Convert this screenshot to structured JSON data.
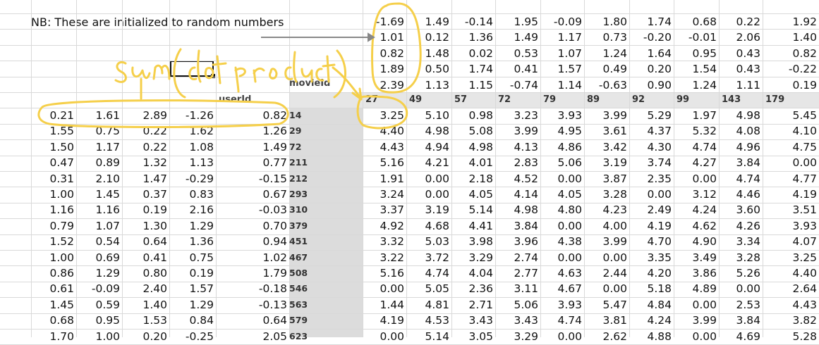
{
  "note": "NB: These are initialized to random numbers",
  "annotation_text": "sum(dot product)",
  "headers": {
    "userId": "userId",
    "movieId": "movieId"
  },
  "movie_factors": [
    [
      "-1.69",
      "1.49",
      "-0.14",
      "1.95",
      "-0.09",
      "1.80",
      "1.74",
      "0.68",
      "0.22",
      "1.92"
    ],
    [
      "1.01",
      "0.12",
      "1.36",
      "1.49",
      "1.17",
      "0.73",
      "-0.20",
      "-0.01",
      "2.06",
      "1.40"
    ],
    [
      "0.82",
      "1.48",
      "0.02",
      "0.53",
      "1.07",
      "1.24",
      "1.64",
      "0.95",
      "0.43",
      "0.82"
    ],
    [
      "1.89",
      "0.50",
      "1.74",
      "0.41",
      "1.57",
      "0.49",
      "0.20",
      "1.54",
      "0.43",
      "-0.22"
    ],
    [
      "2.39",
      "1.13",
      "1.15",
      "-0.74",
      "1.14",
      "-0.63",
      "0.90",
      "1.24",
      "1.11",
      "0.19"
    ]
  ],
  "movie_ids": [
    "27",
    "49",
    "57",
    "72",
    "79",
    "89",
    "92",
    "99",
    "143",
    "179"
  ],
  "user_ids": [
    "14",
    "29",
    "72",
    "211",
    "212",
    "293",
    "310",
    "379",
    "451",
    "467",
    "508",
    "546",
    "563",
    "579",
    "623"
  ],
  "user_factors": [
    [
      "0.21",
      "1.61",
      "2.89",
      "-1.26",
      "0.82"
    ],
    [
      "1.55",
      "0.75",
      "0.22",
      "1.62",
      "1.26"
    ],
    [
      "1.50",
      "1.17",
      "0.22",
      "1.08",
      "1.49"
    ],
    [
      "0.47",
      "0.89",
      "1.32",
      "1.13",
      "0.77"
    ],
    [
      "0.31",
      "2.10",
      "1.47",
      "-0.29",
      "-0.15"
    ],
    [
      "1.00",
      "1.45",
      "0.37",
      "0.83",
      "0.67"
    ],
    [
      "1.16",
      "1.16",
      "0.19",
      "2.16",
      "-0.03"
    ],
    [
      "0.79",
      "1.07",
      "1.30",
      "1.29",
      "0.70"
    ],
    [
      "1.52",
      "0.54",
      "0.64",
      "1.36",
      "0.94"
    ],
    [
      "1.00",
      "0.69",
      "0.41",
      "0.75",
      "1.02"
    ],
    [
      "0.86",
      "1.29",
      "0.80",
      "0.19",
      "1.79"
    ],
    [
      "0.61",
      "-0.09",
      "2.40",
      "1.57",
      "-0.18"
    ],
    [
      "1.45",
      "0.59",
      "1.40",
      "1.29",
      "-0.13"
    ],
    [
      "0.68",
      "0.95",
      "1.53",
      "0.84",
      "0.64"
    ],
    [
      "1.70",
      "1.00",
      "0.20",
      "-0.25",
      "2.05"
    ]
  ],
  "predictions": [
    [
      "3.25",
      "5.10",
      "0.98",
      "3.23",
      "3.93",
      "3.99",
      "5.29",
      "1.97",
      "4.98",
      "5.45"
    ],
    [
      "4.40",
      "4.98",
      "5.08",
      "3.99",
      "4.95",
      "3.61",
      "4.37",
      "5.32",
      "4.08",
      "4.10"
    ],
    [
      "4.43",
      "4.94",
      "4.98",
      "4.13",
      "4.86",
      "3.42",
      "4.30",
      "4.74",
      "4.96",
      "4.75"
    ],
    [
      "5.16",
      "4.21",
      "4.01",
      "2.83",
      "5.06",
      "3.19",
      "3.74",
      "4.27",
      "3.84",
      "0.00"
    ],
    [
      "1.91",
      "0.00",
      "2.18",
      "4.52",
      "0.00",
      "3.87",
      "2.35",
      "0.00",
      "4.74",
      "4.77"
    ],
    [
      "3.24",
      "0.00",
      "4.05",
      "4.14",
      "4.05",
      "3.28",
      "0.00",
      "3.12",
      "4.46",
      "4.19"
    ],
    [
      "3.37",
      "3.19",
      "5.14",
      "4.98",
      "4.80",
      "4.23",
      "2.49",
      "4.24",
      "3.60",
      "3.51"
    ],
    [
      "4.92",
      "4.68",
      "4.41",
      "3.84",
      "0.00",
      "4.00",
      "4.19",
      "4.62",
      "4.26",
      "3.93"
    ],
    [
      "3.32",
      "5.03",
      "3.98",
      "3.96",
      "4.38",
      "3.99",
      "4.70",
      "4.90",
      "3.34",
      "4.07"
    ],
    [
      "3.22",
      "3.72",
      "3.29",
      "2.74",
      "0.00",
      "0.00",
      "3.35",
      "3.49",
      "3.28",
      "3.25"
    ],
    [
      "5.16",
      "4.74",
      "4.04",
      "2.77",
      "4.63",
      "2.44",
      "4.20",
      "3.86",
      "5.26",
      "4.40"
    ],
    [
      "0.00",
      "5.05",
      "2.36",
      "3.11",
      "4.67",
      "0.00",
      "5.18",
      "4.89",
      "0.00",
      "2.64"
    ],
    [
      "1.44",
      "4.81",
      "2.71",
      "5.06",
      "3.93",
      "5.47",
      "4.84",
      "0.00",
      "2.53",
      "4.43"
    ],
    [
      "4.19",
      "4.53",
      "3.43",
      "3.43",
      "4.74",
      "3.81",
      "4.24",
      "3.99",
      "3.84",
      "3.82"
    ],
    [
      "0.00",
      "5.14",
      "3.05",
      "3.29",
      "0.00",
      "2.62",
      "4.88",
      "0.00",
      "4.69",
      "5.28"
    ]
  ],
  "colors": {
    "highlight": "#f5cf4a",
    "grid": "#d9d9d9",
    "band": "#e6e6e6"
  }
}
